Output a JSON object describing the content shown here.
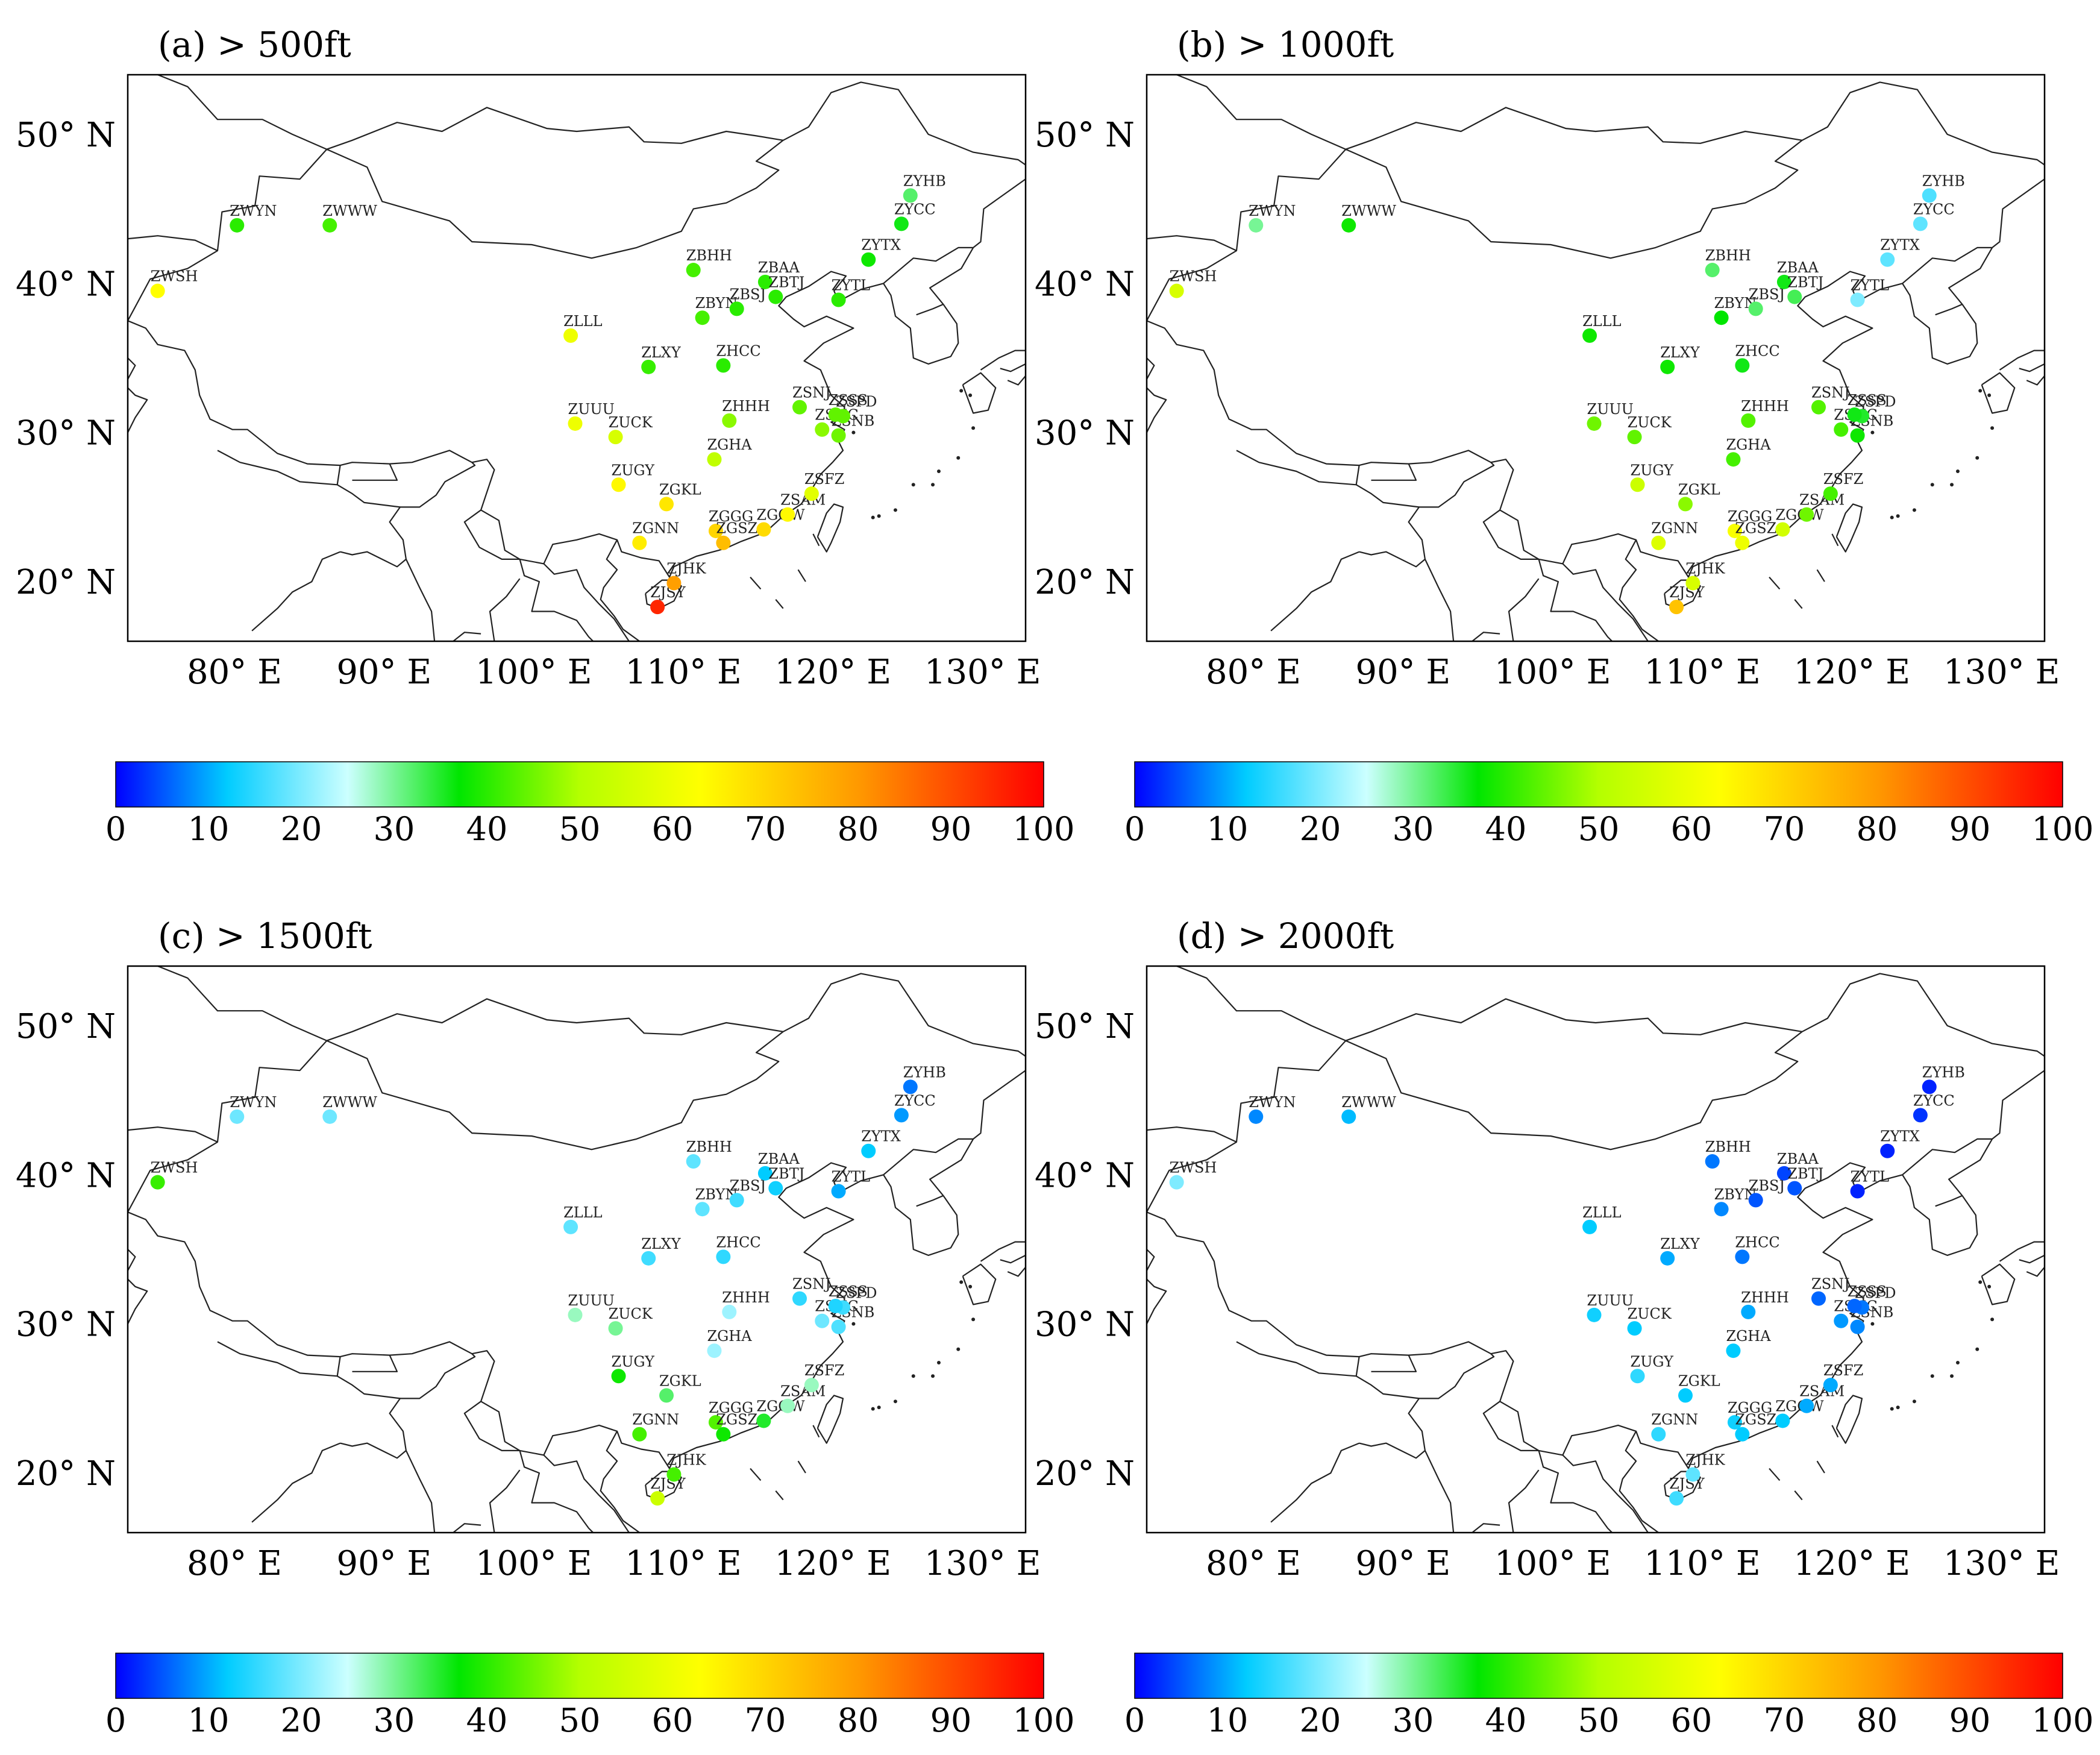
{
  "panels": [
    {
      "label": "(a) > 500ft",
      "values": {
        "ZWSH": 63,
        "ZWYN": 40,
        "ZWWW": 42,
        "ZLLL": 60,
        "ZUUU": 60,
        "ZUCK": 56,
        "ZUGY": 64,
        "ZGKL": 67,
        "ZGNN": 66,
        "ZJSY": 95,
        "ZJHK": 79,
        "ZGGG": 70,
        "ZGSZ": 74,
        "ZGOW": 69,
        "ZSAM": 64,
        "ZSFZ": 58,
        "ZSHC": 47,
        "ZSNB": 45,
        "ZSPD": 44,
        "ZSSS": 44,
        "ZSNJ": 44,
        "ZHHH": 47,
        "ZGHA": 52,
        "ZHCC": 40,
        "ZLXY": 41,
        "ZBYN": 42,
        "ZBSJ": 40,
        "ZBAA": 40,
        "ZBTJ": 40,
        "ZBHH": 42,
        "ZYTL": 40,
        "ZYTX": 38,
        "ZYCC": 36,
        "ZYHB": 32
      }
    },
    {
      "label": "(b) > 1000ft",
      "values": {
        "ZWSH": 56,
        "ZWYN": 30,
        "ZWWW": 38,
        "ZLLL": 38,
        "ZUUU": 45,
        "ZUCK": 44,
        "ZUGY": 54,
        "ZGKL": 47,
        "ZGNN": 57,
        "ZJSY": 73,
        "ZJHK": 56,
        "ZGGG": 62,
        "ZGSZ": 60,
        "ZGOW": 55,
        "ZSAM": 45,
        "ZSFZ": 42,
        "ZSHC": 42,
        "ZSNB": 38,
        "ZSPD": 35,
        "ZSSS": 36,
        "ZSNJ": 43,
        "ZHHH": 43,
        "ZGHA": 42,
        "ZHCC": 36,
        "ZLXY": 38,
        "ZBYN": 37,
        "ZBSJ": 32,
        "ZBAA": 36,
        "ZBTJ": 33,
        "ZBHH": 32,
        "ZYTL": 20,
        "ZYTX": 18,
        "ZYCC": 18,
        "ZYHB": 17
      }
    },
    {
      "label": "(c) > 1500ft",
      "values": {
        "ZWSH": 41,
        "ZWYN": 19,
        "ZWWW": 19,
        "ZLLL": 18,
        "ZUUU": 28,
        "ZUCK": 30,
        "ZUGY": 38,
        "ZGKL": 32,
        "ZGNN": 42,
        "ZJSY": 54,
        "ZJHK": 42,
        "ZGGG": 43,
        "ZGSZ": 38,
        "ZGOW": 35,
        "ZSAM": 28,
        "ZSFZ": 28,
        "ZSHC": 19,
        "ZSNB": 17,
        "ZSPD": 16,
        "ZSSS": 14,
        "ZSNJ": 15,
        "ZHHH": 22,
        "ZGHA": 22,
        "ZHCC": 15,
        "ZLXY": 16,
        "ZBYN": 18,
        "ZBSJ": 16,
        "ZBAA": 12,
        "ZBTJ": 13,
        "ZBHH": 18,
        "ZYTL": 10,
        "ZYTX": 12,
        "ZYCC": 9,
        "ZYHB": 7
      }
    },
    {
      "label": "(d) > 2000ft",
      "values": {
        "ZWSH": 20,
        "ZWYN": 8,
        "ZWWW": 11,
        "ZLLL": 12,
        "ZUUU": 13,
        "ZUCK": 12,
        "ZUGY": 15,
        "ZGKL": 12,
        "ZGNN": 15,
        "ZJSY": 16,
        "ZJHK": 18,
        "ZGGG": 13,
        "ZGSZ": 12,
        "ZGOW": 12,
        "ZSAM": 10,
        "ZSFZ": 10,
        "ZSHC": 9,
        "ZSNB": 8,
        "ZSPD": 7,
        "ZSSS": 6,
        "ZSNJ": 6,
        "ZHHH": 10,
        "ZGHA": 12,
        "ZHCC": 7,
        "ZLXY": 10,
        "ZBYN": 8,
        "ZBSJ": 5,
        "ZBAA": 4,
        "ZBTJ": 5,
        "ZBHH": 7,
        "ZYTL": 2,
        "ZYTX": 2,
        "ZYCC": 3,
        "ZYHB": 2
      }
    }
  ],
  "stations": [
    {
      "code": "ZWSH",
      "lon": 76.0,
      "lat": 39.5
    },
    {
      "code": "ZWYN",
      "lon": 81.3,
      "lat": 43.9
    },
    {
      "code": "ZWWW",
      "lon": 87.5,
      "lat": 43.9
    },
    {
      "code": "ZLLL",
      "lon": 103.6,
      "lat": 36.5
    },
    {
      "code": "ZUUU",
      "lon": 103.9,
      "lat": 30.6
    },
    {
      "code": "ZUCK",
      "lon": 106.6,
      "lat": 29.7
    },
    {
      "code": "ZUGY",
      "lon": 106.8,
      "lat": 26.5
    },
    {
      "code": "ZGKL",
      "lon": 110.0,
      "lat": 25.2
    },
    {
      "code": "ZGNN",
      "lon": 108.2,
      "lat": 22.6
    },
    {
      "code": "ZJSY",
      "lon": 109.4,
      "lat": 18.3
    },
    {
      "code": "ZJHK",
      "lon": 110.5,
      "lat": 19.9
    },
    {
      "code": "ZGGG",
      "lon": 113.3,
      "lat": 23.4
    },
    {
      "code": "ZGSZ",
      "lon": 113.8,
      "lat": 22.6
    },
    {
      "code": "ZGOW",
      "lon": 116.5,
      "lat": 23.5
    },
    {
      "code": "ZSAM",
      "lon": 118.1,
      "lat": 24.5
    },
    {
      "code": "ZSFZ",
      "lon": 119.7,
      "lat": 25.9
    },
    {
      "code": "ZSHC",
      "lon": 120.4,
      "lat": 30.2
    },
    {
      "code": "ZSNB",
      "lon": 121.5,
      "lat": 29.8
    },
    {
      "code": "ZSPD",
      "lon": 121.8,
      "lat": 31.1
    },
    {
      "code": "ZSSS",
      "lon": 121.3,
      "lat": 31.2
    },
    {
      "code": "ZSNJ",
      "lon": 118.9,
      "lat": 31.7
    },
    {
      "code": "ZHHH",
      "lon": 114.2,
      "lat": 30.8
    },
    {
      "code": "ZGHA",
      "lon": 113.2,
      "lat": 28.2
    },
    {
      "code": "ZHCC",
      "lon": 113.8,
      "lat": 34.5
    },
    {
      "code": "ZLXY",
      "lon": 108.8,
      "lat": 34.4
    },
    {
      "code": "ZBYN",
      "lon": 112.4,
      "lat": 37.7
    },
    {
      "code": "ZBSJ",
      "lon": 114.7,
      "lat": 38.3
    },
    {
      "code": "ZBAA",
      "lon": 116.6,
      "lat": 40.1
    },
    {
      "code": "ZBTJ",
      "lon": 117.3,
      "lat": 39.1
    },
    {
      "code": "ZBHH",
      "lon": 111.8,
      "lat": 40.9
    },
    {
      "code": "ZYTL",
      "lon": 121.5,
      "lat": 38.9
    },
    {
      "code": "ZYTX",
      "lon": 123.5,
      "lat": 41.6
    },
    {
      "code": "ZYCC",
      "lon": 125.7,
      "lat": 44.0
    },
    {
      "code": "ZYHB",
      "lon": 126.3,
      "lat": 45.9
    }
  ],
  "axes": {
    "lon_ticks": [
      {
        "value": 80,
        "label": "80° E"
      },
      {
        "value": 90,
        "label": "90° E"
      },
      {
        "value": 100,
        "label": "100° E"
      },
      {
        "value": 110,
        "label": "110° E"
      },
      {
        "value": 120,
        "label": "120° E"
      },
      {
        "value": 130,
        "label": "130° E"
      }
    ],
    "lat_ticks": [
      {
        "value": 20,
        "label": "20° N"
      },
      {
        "value": 30,
        "label": "30° N"
      },
      {
        "value": 40,
        "label": "40° N"
      },
      {
        "value": 50,
        "label": "50° N"
      }
    ],
    "lon_range": [
      74,
      134
    ],
    "lat_range": [
      16,
      54
    ]
  },
  "colorbar": {
    "ticks": [
      "0",
      "10",
      "20",
      "30",
      "40",
      "50",
      "60",
      "70",
      "80",
      "90",
      "100"
    ],
    "range": [
      0,
      100
    ],
    "stops": [
      {
        "v": 0,
        "c": "#0000ff"
      },
      {
        "v": 12,
        "c": "#00ccff"
      },
      {
        "v": 25,
        "c": "#ccffff"
      },
      {
        "v": 37,
        "c": "#00e600"
      },
      {
        "v": 50,
        "c": "#b4ff00"
      },
      {
        "v": 63,
        "c": "#ffff00"
      },
      {
        "v": 80,
        "c": "#ff9900"
      },
      {
        "v": 100,
        "c": "#ff0000"
      }
    ]
  }
}
